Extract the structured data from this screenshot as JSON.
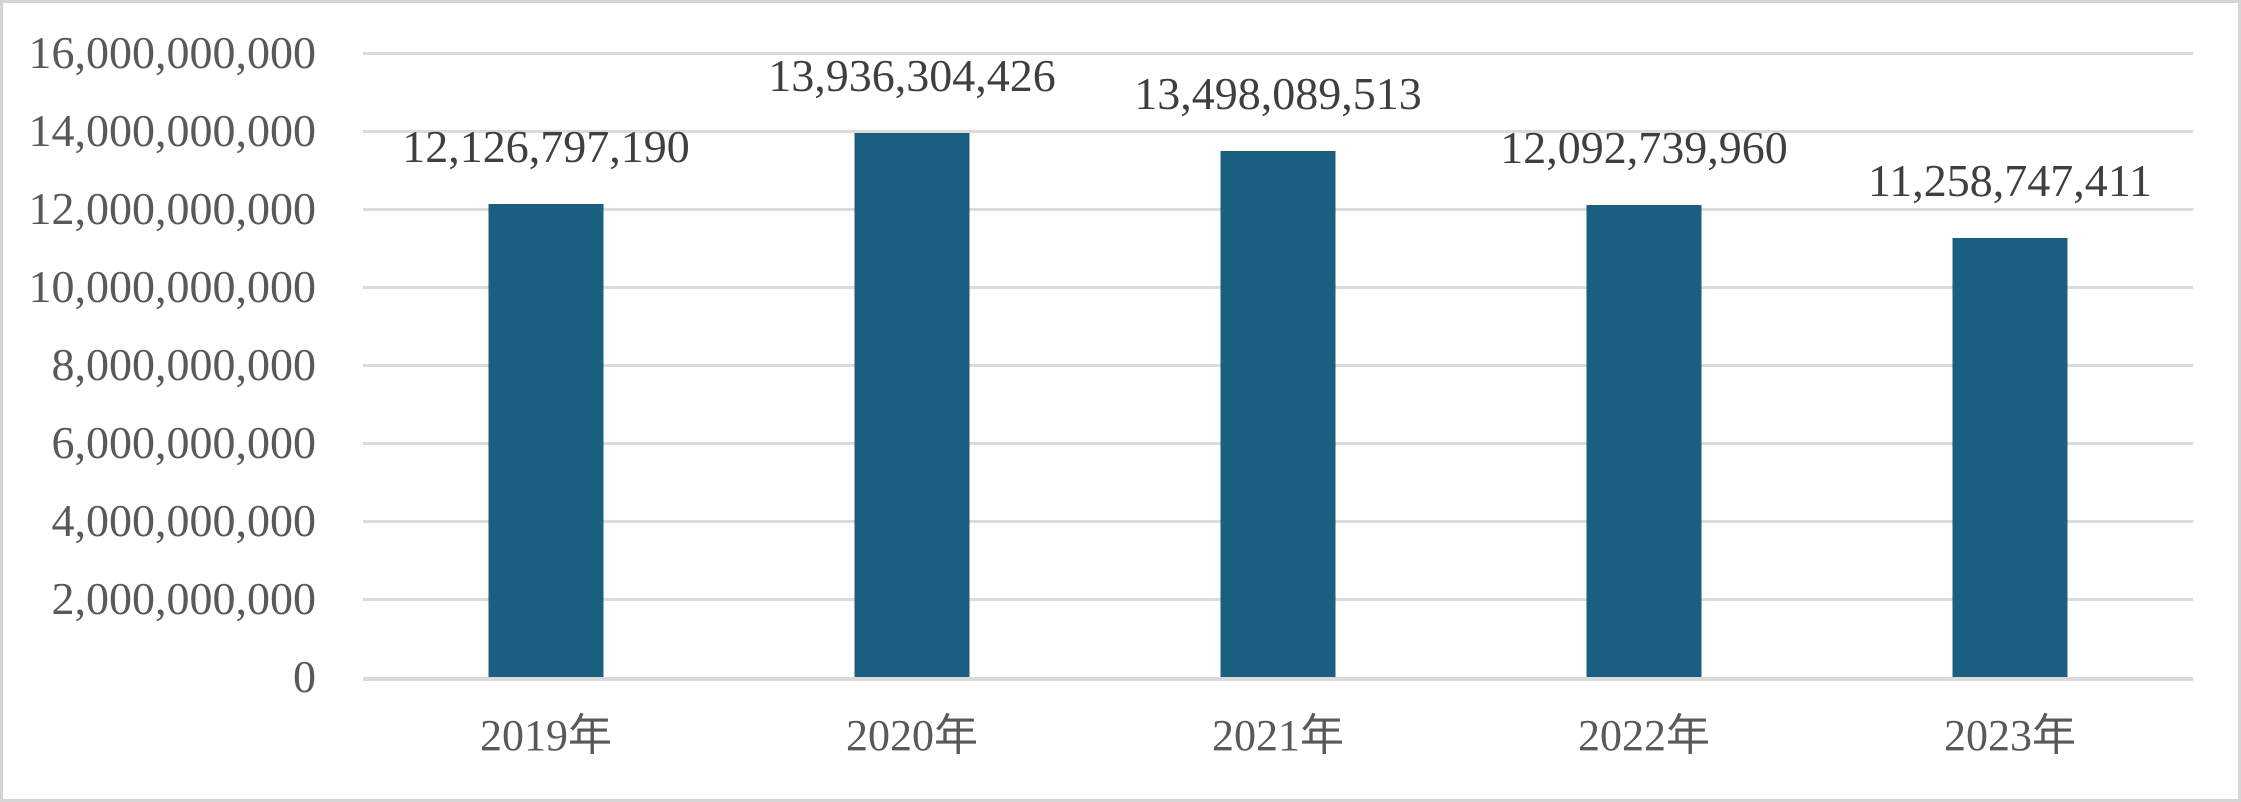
{
  "frame": {
    "background": "#ffffff",
    "border_color": "#d5d5d5"
  },
  "chart_data": {
    "type": "bar",
    "title": "",
    "xlabel": "",
    "ylabel": "",
    "categories": [
      "2019年",
      "2020年",
      "2021年",
      "2022年",
      "2023年"
    ],
    "values": [
      12126797190,
      13936304426,
      13498089513,
      12092739960,
      11258747411
    ],
    "value_labels": [
      "12,126,797,190",
      "13,936,304,426",
      "13,498,089,513",
      "12,092,739,960",
      "11,258,747,411"
    ],
    "ylim": [
      0,
      16000000000
    ],
    "ytick_step": 2000000000,
    "ytick_labels": [
      "16,000,000,000",
      "14,000,000,000",
      "12,000,000,000",
      "10,000,000,000",
      "8,000,000,000",
      "6,000,000,000",
      "4,000,000,000",
      "2,000,000,000",
      "0"
    ],
    "grid": true,
    "legend": false,
    "colors": {
      "bar": "#1b5f80",
      "gridline": "#dbdbdb",
      "axis_line": "#d9d9d9",
      "axis_label": "#595959",
      "data_label": "#3f3f3f"
    }
  }
}
